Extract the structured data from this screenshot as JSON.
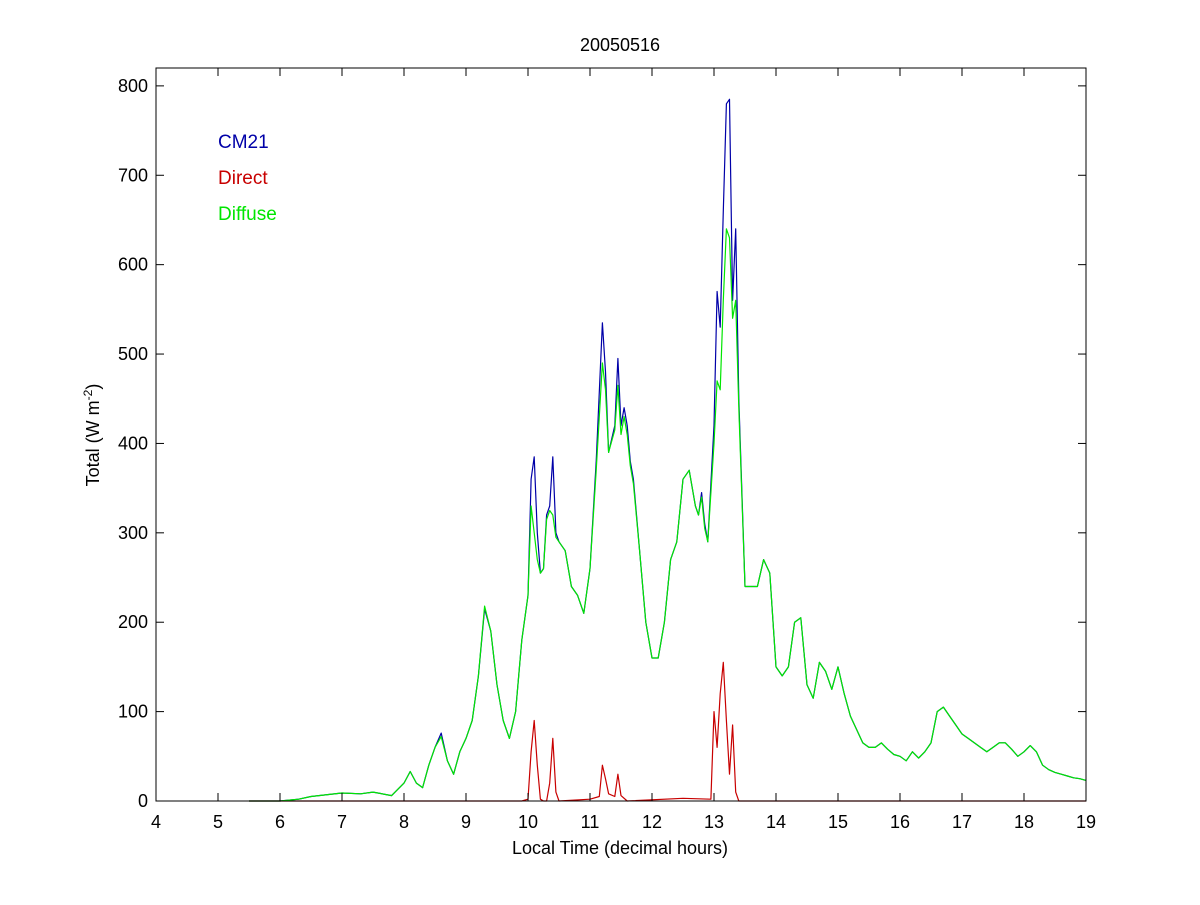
{
  "chart_data": {
    "type": "line",
    "title": "20050516",
    "xlabel": "Local Time (decimal hours)",
    "ylabel": {
      "main": "Total (W m",
      "superscript": "-2",
      "close": ")"
    },
    "xlim": [
      4,
      19
    ],
    "ylim": [
      0,
      820
    ],
    "xticks": [
      4,
      5,
      6,
      7,
      8,
      9,
      10,
      11,
      12,
      13,
      14,
      15,
      16,
      17,
      18,
      19
    ],
    "yticks": [
      0,
      100,
      200,
      300,
      400,
      500,
      600,
      700,
      800
    ],
    "grid": false,
    "legend_placement": "top-left (text labels inside axes)",
    "series": [
      {
        "name": "CM21",
        "color": "#0000a8",
        "x": [
          5.5,
          6.0,
          6.3,
          6.5,
          7.0,
          7.3,
          7.5,
          7.8,
          8.0,
          8.1,
          8.2,
          8.3,
          8.4,
          8.5,
          8.6,
          8.7,
          8.8,
          8.9,
          9.0,
          9.1,
          9.2,
          9.3,
          9.4,
          9.5,
          9.6,
          9.7,
          9.8,
          9.9,
          10.0,
          10.05,
          10.1,
          10.15,
          10.2,
          10.25,
          10.3,
          10.35,
          10.4,
          10.45,
          10.5,
          10.6,
          10.7,
          10.8,
          10.9,
          11.0,
          11.1,
          11.2,
          11.25,
          11.3,
          11.4,
          11.45,
          11.5,
          11.55,
          11.6,
          11.65,
          11.7,
          11.8,
          11.9,
          12.0,
          12.1,
          12.2,
          12.3,
          12.4,
          12.5,
          12.6,
          12.7,
          12.75,
          12.8,
          12.85,
          12.9,
          13.0,
          13.05,
          13.1,
          13.15,
          13.2,
          13.25,
          13.3,
          13.35,
          13.4,
          13.5,
          13.6,
          13.7,
          13.8,
          13.9,
          14.0,
          14.1,
          14.2,
          14.3,
          14.4,
          14.5,
          14.6,
          14.7,
          14.8,
          14.9,
          15.0,
          15.1,
          15.2,
          15.3,
          15.4,
          15.5,
          15.6,
          15.7,
          15.8,
          15.9,
          16.0,
          16.1,
          16.2,
          16.3,
          16.4,
          16.5,
          16.6,
          16.7,
          16.8,
          16.9,
          17.0,
          17.1,
          17.2,
          17.3,
          17.4,
          17.5,
          17.6,
          17.7,
          17.8,
          17.9,
          18.0,
          18.1,
          18.2,
          18.3,
          18.4,
          18.5,
          18.6,
          18.7,
          18.8,
          18.9,
          19.0
        ],
        "y": [
          0,
          0,
          2,
          5,
          9,
          8,
          10,
          6,
          20,
          33,
          20,
          15,
          40,
          60,
          76,
          45,
          30,
          55,
          70,
          90,
          140,
          215,
          190,
          130,
          90,
          70,
          100,
          180,
          230,
          360,
          385,
          300,
          255,
          260,
          320,
          330,
          385,
          300,
          290,
          280,
          240,
          230,
          210,
          260,
          380,
          535,
          480,
          390,
          420,
          495,
          420,
          440,
          420,
          380,
          360,
          280,
          200,
          160,
          160,
          200,
          270,
          290,
          360,
          370,
          330,
          320,
          345,
          310,
          290,
          420,
          570,
          530,
          660,
          780,
          785,
          560,
          640,
          450,
          240,
          240,
          240,
          270,
          255,
          150,
          140,
          150,
          200,
          205,
          130,
          115,
          155,
          145,
          125,
          150,
          120,
          95,
          80,
          65,
          60,
          60,
          65,
          58,
          52,
          50,
          45,
          55,
          48,
          55,
          65,
          100,
          105,
          95,
          85,
          75,
          70,
          65,
          60,
          55,
          60,
          65,
          65,
          58,
          50,
          55,
          62,
          55,
          40,
          35,
          32,
          30,
          28,
          26,
          25,
          23
        ]
      },
      {
        "name": "Direct",
        "color": "#c80000",
        "x": [
          5.5,
          9.9,
          10.0,
          10.05,
          10.1,
          10.15,
          10.2,
          10.25,
          10.3,
          10.35,
          10.4,
          10.45,
          10.5,
          11.0,
          11.15,
          11.2,
          11.25,
          11.3,
          11.4,
          11.45,
          11.5,
          11.6,
          12.5,
          12.95,
          13.0,
          13.05,
          13.1,
          13.15,
          13.2,
          13.25,
          13.3,
          13.35,
          13.4,
          13.5,
          19.0
        ],
        "y": [
          0,
          0,
          2,
          55,
          90,
          40,
          2,
          0,
          0,
          20,
          70,
          10,
          0,
          2,
          5,
          40,
          25,
          8,
          5,
          30,
          6,
          0,
          3,
          2,
          100,
          60,
          120,
          155,
          90,
          30,
          85,
          10,
          0,
          0,
          0
        ]
      },
      {
        "name": "Diffuse",
        "color": "#00e600",
        "x": [
          5.5,
          6.0,
          6.3,
          6.5,
          7.0,
          7.3,
          7.5,
          7.8,
          8.0,
          8.1,
          8.2,
          8.3,
          8.4,
          8.5,
          8.6,
          8.7,
          8.8,
          8.9,
          9.0,
          9.1,
          9.2,
          9.3,
          9.4,
          9.5,
          9.6,
          9.7,
          9.8,
          9.9,
          10.0,
          10.05,
          10.1,
          10.15,
          10.2,
          10.25,
          10.3,
          10.35,
          10.4,
          10.45,
          10.5,
          10.6,
          10.7,
          10.8,
          10.9,
          11.0,
          11.1,
          11.2,
          11.25,
          11.3,
          11.4,
          11.45,
          11.5,
          11.55,
          11.6,
          11.65,
          11.7,
          11.8,
          11.9,
          12.0,
          12.1,
          12.2,
          12.3,
          12.4,
          12.5,
          12.6,
          12.7,
          12.75,
          12.8,
          12.85,
          12.9,
          13.0,
          13.05,
          13.1,
          13.15,
          13.2,
          13.25,
          13.3,
          13.35,
          13.4,
          13.5,
          13.6,
          13.7,
          13.8,
          13.9,
          14.0,
          14.1,
          14.2,
          14.3,
          14.4,
          14.5,
          14.6,
          14.7,
          14.8,
          14.9,
          15.0,
          15.1,
          15.2,
          15.3,
          15.4,
          15.5,
          15.6,
          15.7,
          15.8,
          15.9,
          16.0,
          16.1,
          16.2,
          16.3,
          16.4,
          16.5,
          16.6,
          16.7,
          16.8,
          16.9,
          17.0,
          17.1,
          17.2,
          17.3,
          17.4,
          17.5,
          17.6,
          17.7,
          17.8,
          17.9,
          18.0,
          18.1,
          18.2,
          18.3,
          18.4,
          18.5,
          18.6,
          18.7,
          18.8,
          18.9,
          19.0
        ],
        "y": [
          0,
          0,
          2,
          5,
          9,
          8,
          10,
          6,
          20,
          33,
          20,
          15,
          40,
          60,
          72,
          45,
          30,
          55,
          70,
          90,
          140,
          218,
          190,
          130,
          90,
          70,
          100,
          180,
          230,
          330,
          300,
          270,
          255,
          260,
          315,
          325,
          320,
          295,
          290,
          280,
          240,
          230,
          210,
          260,
          370,
          490,
          460,
          390,
          415,
          465,
          410,
          430,
          410,
          375,
          355,
          280,
          200,
          160,
          160,
          200,
          270,
          290,
          360,
          370,
          330,
          320,
          340,
          305,
          290,
          400,
          470,
          460,
          560,
          640,
          630,
          540,
          560,
          440,
          240,
          240,
          240,
          270,
          255,
          150,
          140,
          150,
          200,
          205,
          130,
          115,
          155,
          145,
          125,
          150,
          120,
          95,
          80,
          65,
          60,
          60,
          65,
          58,
          52,
          50,
          45,
          55,
          48,
          55,
          65,
          100,
          105,
          95,
          85,
          75,
          70,
          65,
          60,
          55,
          60,
          65,
          65,
          58,
          50,
          55,
          62,
          55,
          40,
          35,
          32,
          30,
          28,
          26,
          25,
          23
        ]
      }
    ]
  }
}
